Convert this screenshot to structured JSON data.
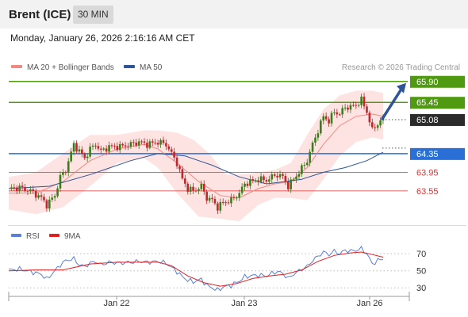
{
  "header": {
    "instrument": "Brent (ICE)",
    "timeframe": "30 MIN"
  },
  "datetime": "Monday, January 26, 2026 2:16:16 AM CET",
  "source": "Research © 2026 Trading Central",
  "legend": {
    "ma20": {
      "label": "MA 20 + Bollinger Bands",
      "color": "#f08a80"
    },
    "ma50": {
      "label": "MA 50",
      "color": "#2f5597"
    }
  },
  "legend_lower": {
    "rsi": {
      "label": "RSI",
      "color": "#5b7fd6"
    },
    "ma9": {
      "label": "9MA",
      "color": "#e02020"
    }
  },
  "chart_data": [
    {
      "type": "candlestick",
      "x_ticks": [
        "Jan 22",
        "Jan 23",
        "Jan 26"
      ],
      "ylim": [
        62.85,
        66.1
      ],
      "levels": [
        {
          "value": 65.9,
          "label": "65.90",
          "kind": "resistance",
          "color": "#4f9a10"
        },
        {
          "value": 65.45,
          "label": "65.45",
          "kind": "resistance",
          "color": "#4f9a10"
        },
        {
          "value": 65.08,
          "label": "65.08",
          "kind": "last",
          "color": "#2b2b2b"
        },
        {
          "value": 64.35,
          "label": "64.35",
          "kind": "pivot",
          "color": "#2a6fd6"
        },
        {
          "value": 63.95,
          "label": "63.95",
          "kind": "support",
          "color": "#e03030"
        },
        {
          "value": 63.55,
          "label": "63.55",
          "kind": "support",
          "color": "#e03030"
        }
      ],
      "close_path": [
        [
          0,
          63.6
        ],
        [
          4,
          63.62
        ],
        [
          8,
          63.55
        ],
        [
          12,
          63.4
        ],
        [
          14,
          63.25
        ],
        [
          17,
          63.45
        ],
        [
          19,
          63.85
        ],
        [
          21,
          64.0
        ],
        [
          24,
          64.55
        ],
        [
          26,
          64.4
        ],
        [
          28,
          64.25
        ],
        [
          30,
          64.45
        ],
        [
          32,
          64.55
        ],
        [
          34,
          64.4
        ],
        [
          37,
          64.5
        ],
        [
          41,
          64.5
        ],
        [
          45,
          64.55
        ],
        [
          48,
          64.6
        ],
        [
          51,
          64.55
        ],
        [
          55,
          64.6
        ],
        [
          58,
          64.55
        ],
        [
          60,
          64.35
        ],
        [
          62,
          64.15
        ],
        [
          64,
          63.8
        ],
        [
          66,
          63.6
        ],
        [
          68,
          63.55
        ],
        [
          71,
          63.65
        ],
        [
          73,
          63.4
        ],
        [
          75,
          63.35
        ],
        [
          77,
          63.2
        ],
        [
          79,
          63.3
        ],
        [
          82,
          63.35
        ],
        [
          85,
          63.5
        ],
        [
          87,
          63.7
        ],
        [
          89,
          63.75
        ],
        [
          92,
          63.8
        ],
        [
          95,
          63.78
        ],
        [
          97,
          63.85
        ],
        [
          99,
          63.9
        ],
        [
          101,
          63.85
        ],
        [
          103,
          63.65
        ],
        [
          105,
          63.8
        ],
        [
          107,
          63.95
        ],
        [
          110,
          64.2
        ],
        [
          112,
          64.55
        ],
        [
          114,
          64.85
        ],
        [
          116,
          65.15
        ],
        [
          118,
          65.05
        ],
        [
          120,
          65.25
        ],
        [
          122,
          65.2
        ],
        [
          124,
          65.35
        ],
        [
          126,
          65.35
        ],
        [
          128,
          65.4
        ],
        [
          130,
          65.5
        ],
        [
          132,
          65.25
        ],
        [
          134,
          64.85
        ],
        [
          136,
          65.0
        ],
        [
          138,
          65.08
        ]
      ],
      "ma20_path": [
        [
          0,
          63.5
        ],
        [
          10,
          63.5
        ],
        [
          20,
          63.75
        ],
        [
          30,
          64.2
        ],
        [
          40,
          64.45
        ],
        [
          50,
          64.55
        ],
        [
          55,
          64.45
        ],
        [
          62,
          64.15
        ],
        [
          70,
          63.75
        ],
        [
          78,
          63.45
        ],
        [
          85,
          63.4
        ],
        [
          92,
          63.6
        ],
        [
          98,
          63.7
        ],
        [
          104,
          63.75
        ],
        [
          110,
          64.05
        ],
        [
          116,
          64.55
        ],
        [
          122,
          64.95
        ],
        [
          128,
          65.15
        ],
        [
          134,
          65.2
        ],
        [
          138,
          65.15
        ]
      ],
      "bollinger_upper_path": [
        [
          0,
          63.85
        ],
        [
          10,
          63.95
        ],
        [
          20,
          64.35
        ],
        [
          30,
          64.75
        ],
        [
          40,
          64.75
        ],
        [
          50,
          64.85
        ],
        [
          55,
          64.85
        ],
        [
          62,
          64.8
        ],
        [
          68,
          64.65
        ],
        [
          74,
          64.35
        ],
        [
          80,
          63.9
        ],
        [
          86,
          63.9
        ],
        [
          92,
          63.95
        ],
        [
          98,
          64.0
        ],
        [
          104,
          64.15
        ],
        [
          110,
          64.75
        ],
        [
          116,
          65.3
        ],
        [
          122,
          65.6
        ],
        [
          128,
          65.7
        ],
        [
          134,
          65.7
        ],
        [
          138,
          65.65
        ]
      ],
      "bollinger_lower_path": [
        [
          0,
          63.15
        ],
        [
          10,
          63.05
        ],
        [
          20,
          63.2
        ],
        [
          30,
          63.65
        ],
        [
          40,
          64.15
        ],
        [
          50,
          64.25
        ],
        [
          55,
          64.05
        ],
        [
          62,
          63.5
        ],
        [
          70,
          63.0
        ],
        [
          78,
          62.95
        ],
        [
          85,
          62.9
        ],
        [
          92,
          63.25
        ],
        [
          98,
          63.4
        ],
        [
          104,
          63.4
        ],
        [
          110,
          63.35
        ],
        [
          116,
          63.8
        ],
        [
          122,
          64.3
        ],
        [
          128,
          64.6
        ],
        [
          134,
          64.7
        ],
        [
          138,
          64.65
        ]
      ],
      "ma50_path": [
        [
          0,
          63.6
        ],
        [
          15,
          63.65
        ],
        [
          30,
          63.9
        ],
        [
          45,
          64.2
        ],
        [
          55,
          64.35
        ],
        [
          65,
          64.3
        ],
        [
          75,
          64.1
        ],
        [
          85,
          63.85
        ],
        [
          95,
          63.7
        ],
        [
          102,
          63.75
        ],
        [
          108,
          63.8
        ],
        [
          116,
          63.95
        ],
        [
          124,
          64.05
        ],
        [
          132,
          64.2
        ],
        [
          138,
          64.38
        ]
      ],
      "projection": {
        "from": 65.08,
        "to": 65.9,
        "direction": "up"
      }
    },
    {
      "type": "line",
      "title": "RSI",
      "y_ticks": [
        70,
        50,
        30
      ],
      "ylim": [
        20,
        85
      ],
      "rsi_path": [
        [
          0,
          51
        ],
        [
          4,
          52
        ],
        [
          8,
          49
        ],
        [
          12,
          46
        ],
        [
          14,
          40
        ],
        [
          17,
          50
        ],
        [
          19,
          57
        ],
        [
          21,
          62
        ],
        [
          24,
          64
        ],
        [
          26,
          57
        ],
        [
          28,
          55
        ],
        [
          30,
          59
        ],
        [
          32,
          61
        ],
        [
          34,
          57
        ],
        [
          37,
          60
        ],
        [
          41,
          59
        ],
        [
          45,
          60
        ],
        [
          48,
          61
        ],
        [
          51,
          60
        ],
        [
          55,
          61
        ],
        [
          58,
          59
        ],
        [
          60,
          54
        ],
        [
          62,
          49
        ],
        [
          64,
          43
        ],
        [
          66,
          39
        ],
        [
          68,
          37
        ],
        [
          71,
          40
        ],
        [
          73,
          33
        ],
        [
          75,
          30
        ],
        [
          77,
          27
        ],
        [
          79,
          31
        ],
        [
          82,
          33
        ],
        [
          85,
          38
        ],
        [
          87,
          43
        ],
        [
          89,
          44
        ],
        [
          92,
          45
        ],
        [
          95,
          44
        ],
        [
          97,
          47
        ],
        [
          99,
          49
        ],
        [
          101,
          47
        ],
        [
          103,
          41
        ],
        [
          105,
          46
        ],
        [
          107,
          50
        ],
        [
          110,
          55
        ],
        [
          112,
          62
        ],
        [
          114,
          67
        ],
        [
          116,
          72
        ],
        [
          118,
          69
        ],
        [
          120,
          73
        ],
        [
          122,
          70
        ],
        [
          124,
          74
        ],
        [
          126,
          73
        ],
        [
          128,
          74
        ],
        [
          130,
          76
        ],
        [
          132,
          70
        ],
        [
          134,
          58
        ],
        [
          136,
          62
        ],
        [
          138,
          64
        ]
      ],
      "ma9_path": [
        [
          0,
          50
        ],
        [
          10,
          51
        ],
        [
          20,
          51
        ],
        [
          30,
          58
        ],
        [
          40,
          60
        ],
        [
          50,
          60
        ],
        [
          55,
          60
        ],
        [
          60,
          56
        ],
        [
          66,
          44
        ],
        [
          72,
          36
        ],
        [
          78,
          32
        ],
        [
          84,
          35
        ],
        [
          90,
          41
        ],
        [
          96,
          44
        ],
        [
          102,
          46
        ],
        [
          108,
          51
        ],
        [
          114,
          61
        ],
        [
          120,
          68
        ],
        [
          126,
          71
        ],
        [
          130,
          72
        ],
        [
          134,
          69
        ],
        [
          138,
          66
        ]
      ]
    }
  ]
}
